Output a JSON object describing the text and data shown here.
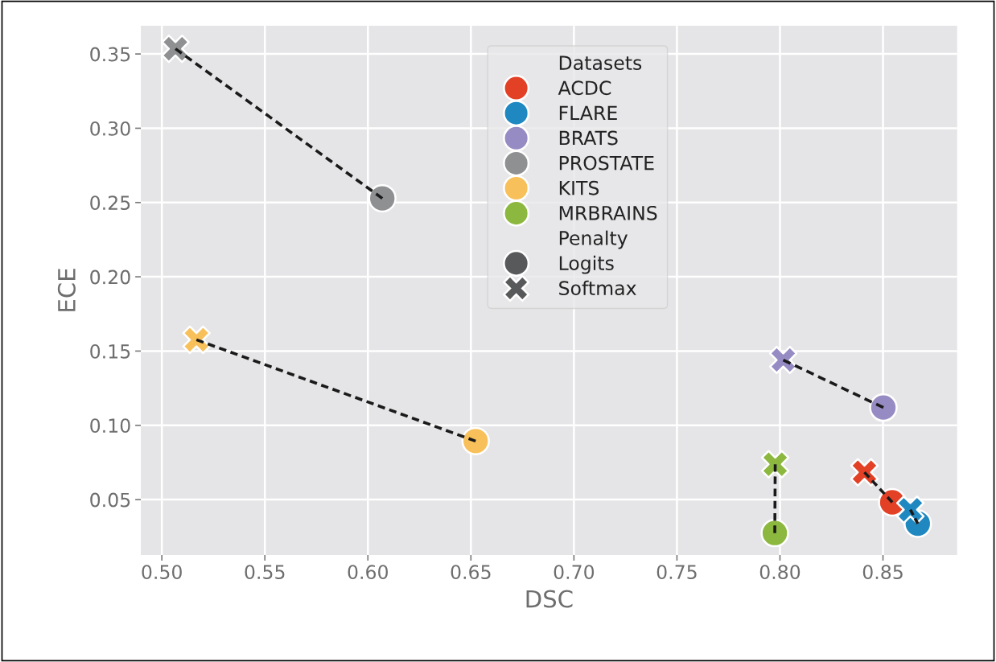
{
  "chart_data": {
    "type": "scatter",
    "xlabel": "DSC",
    "ylabel": "ECE",
    "xlim": [
      0.4898,
      0.886
    ],
    "ylim": [
      0.0127,
      0.369
    ],
    "xticks": [
      {
        "value": 0.5,
        "label": "0.50"
      },
      {
        "value": 0.55,
        "label": "0.55"
      },
      {
        "value": 0.6,
        "label": "0.60"
      },
      {
        "value": 0.65,
        "label": "0.65"
      },
      {
        "value": 0.7,
        "label": "0.70"
      },
      {
        "value": 0.75,
        "label": "0.75"
      },
      {
        "value": 0.8,
        "label": "0.80"
      },
      {
        "value": 0.85,
        "label": "0.85"
      }
    ],
    "yticks": [
      {
        "value": 0.05,
        "label": "0.05"
      },
      {
        "value": 0.1,
        "label": "0.10"
      },
      {
        "value": 0.15,
        "label": "0.15"
      },
      {
        "value": 0.2,
        "label": "0.20"
      },
      {
        "value": 0.25,
        "label": "0.25"
      },
      {
        "value": 0.3,
        "label": "0.30"
      },
      {
        "value": 0.35,
        "label": "0.35"
      }
    ],
    "grid": true,
    "legend": "top",
    "legend_title": [
      "Datasets",
      "Penalty"
    ],
    "annotations": [
      "Logits",
      "Softmax"
    ],
    "series": [
      {
        "type": "line",
        "color": "#1a1a1a",
        "line_style": "dashed",
        "marker": "none",
        "x": [
          0.841,
          0.8545
        ],
        "values": [
          0.0684,
          0.0482
        ]
      },
      {
        "type": "line",
        "color": "#1a1a1a",
        "line_style": "dashed",
        "marker": "none",
        "x": [
          0.8633,
          0.8669
        ],
        "values": [
          0.0432,
          0.0338
        ]
      },
      {
        "type": "line",
        "color": "#1a1a1a",
        "line_style": "dashed",
        "marker": "none",
        "x": [
          0.8016,
          0.8502
        ],
        "values": [
          0.144,
          0.112
        ]
      },
      {
        "type": "line",
        "color": "#1a1a1a",
        "line_style": "dashed",
        "marker": "none",
        "x": [
          0.5066,
          0.607
        ],
        "values": [
          0.3535,
          0.2528
        ]
      },
      {
        "type": "line",
        "color": "#1a1a1a",
        "line_style": "dashed",
        "marker": "none",
        "x": [
          0.5168,
          0.6523
        ],
        "values": [
          0.1576,
          0.0894
        ]
      },
      {
        "type": "line",
        "color": "#1a1a1a",
        "line_style": "dashed",
        "marker": "none",
        "x": [
          0.7977,
          0.7975
        ],
        "values": [
          0.0738,
          0.0275
        ]
      },
      {
        "name": "ACDC",
        "color": "#e24126",
        "marker": "circle",
        "x": [
          0.8545
        ],
        "values": [
          0.0482
        ]
      },
      {
        "name": "FLARE",
        "color": "#1f88c0",
        "marker": "circle",
        "x": [
          0.8669
        ],
        "values": [
          0.0338
        ]
      },
      {
        "name": "BRATS",
        "color": "#978bc4",
        "marker": "circle",
        "x": [
          0.8502
        ],
        "values": [
          0.112
        ]
      },
      {
        "name": "PROSTATE",
        "color": "#8f9092",
        "marker": "circle",
        "x": [
          0.607
        ],
        "values": [
          0.2528
        ]
      },
      {
        "name": "KITS",
        "color": "#f8c05a",
        "marker": "circle",
        "x": [
          0.6523
        ],
        "values": [
          0.0894
        ]
      },
      {
        "name": "MRBRAINS",
        "color": "#8cb840",
        "marker": "circle",
        "x": [
          0.7975
        ],
        "values": [
          0.0275
        ]
      },
      {
        "color": "#e24126",
        "marker": "cross",
        "x": [
          0.841
        ],
        "values": [
          0.0684
        ]
      },
      {
        "color": "#1f88c0",
        "marker": "cross",
        "x": [
          0.8633
        ],
        "values": [
          0.0432
        ]
      },
      {
        "color": "#978bc4",
        "marker": "cross",
        "x": [
          0.8016
        ],
        "values": [
          0.144
        ]
      },
      {
        "color": "#8f9092",
        "marker": "cross",
        "x": [
          0.5066
        ],
        "values": [
          0.3535
        ]
      },
      {
        "color": "#f8c05a",
        "marker": "cross",
        "x": [
          0.5168
        ],
        "values": [
          0.1576
        ]
      },
      {
        "color": "#8cb840",
        "marker": "cross",
        "x": [
          0.7977
        ],
        "values": [
          0.0738
        ]
      }
    ]
  }
}
